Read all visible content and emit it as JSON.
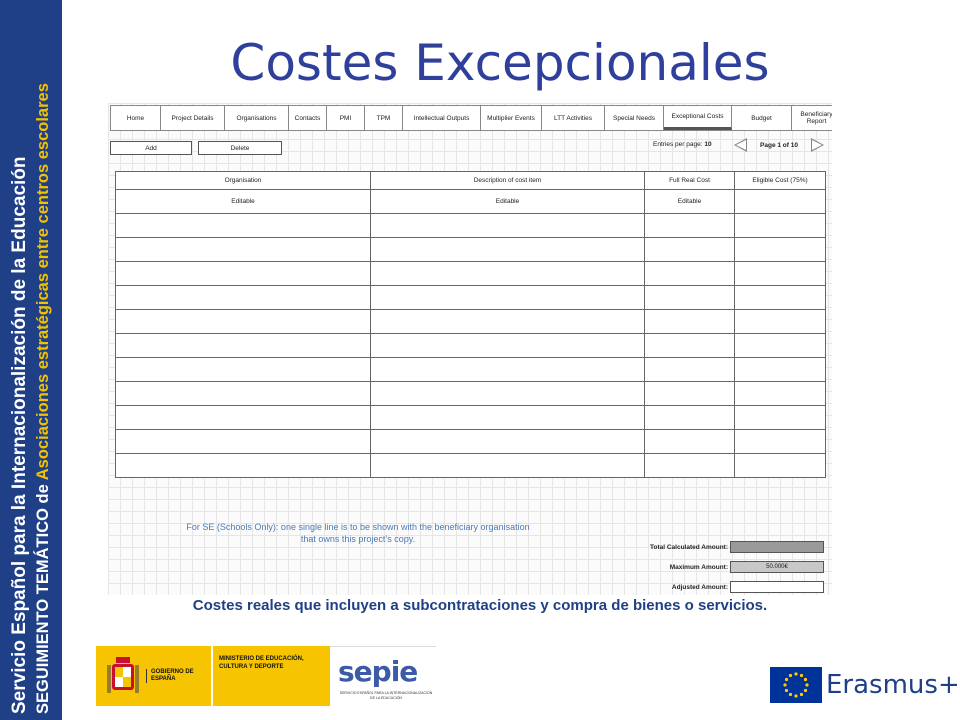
{
  "side_banner": {
    "line1": "Servicio Español para la Internacionalización de la Educación",
    "line2_prefix": "SEGUIMIENTO TEMÁTICO de ",
    "line2_highlight": "Asociaciones estratégicas entre centros escolares"
  },
  "slide_title": "Costes Excepcionales",
  "tabs": [
    {
      "label": "Home"
    },
    {
      "label": "Project Details"
    },
    {
      "label": "Organisations"
    },
    {
      "label": "Contacts"
    },
    {
      "label": "PMI"
    },
    {
      "label": "TPM"
    },
    {
      "label": "Intellectual Outputs"
    },
    {
      "label": "Multiplier Events"
    },
    {
      "label": "LTT Activities"
    },
    {
      "label": "Special Needs"
    },
    {
      "label": "Exceptional Costs"
    },
    {
      "label": "Budget"
    },
    {
      "label": "Beneficiary Report"
    }
  ],
  "toolbar": {
    "add_label": "Add",
    "delete_label": "Delete",
    "entries_label": "Entries per page:",
    "entries_value": "10",
    "page_label": "Page 1 of 10"
  },
  "table": {
    "headers": [
      "Organisation",
      "Description of cost item",
      "Full Real Cost",
      "Eligible Cost (75%)"
    ],
    "editable_row": [
      "Editable",
      "Editable",
      "Editable",
      ""
    ]
  },
  "note": "For SE (Schools Only): one single line is to be shown with the beneficiary organisation that owns this project’s copy.",
  "amounts": {
    "total_label": "Total Calculated Amount:",
    "total_value": "",
    "maximum_label": "Maximum Amount:",
    "maximum_value": "50.000€",
    "adjusted_label": "Adjusted Amount:",
    "adjusted_value": ""
  },
  "caption": "Costes reales que incluyen a subcontrataciones y compra de bienes o servicios.",
  "footer": {
    "gobierno": "GOBIERNO DE ESPAÑA",
    "ministerio": "MINISTERIO DE EDUCACIÓN, CULTURA Y DEPORTE",
    "sepie": "sepie",
    "sepie_sub": "SERVICIO ESPAÑOL PARA LA INTERNACIONALIZACIÓN DE LA EDUCACIÓN",
    "erasmus": "Erasmus+"
  },
  "colors": {
    "banner": "#1f3f86",
    "highlight": "#f2c200",
    "title": "#2f3f9c",
    "note": "#4a7ab8",
    "gov_yellow": "#f6c400"
  },
  "icons": [
    "arrow-left-icon",
    "arrow-right-icon",
    "spain-crest-icon",
    "eu-flag-icon"
  ]
}
